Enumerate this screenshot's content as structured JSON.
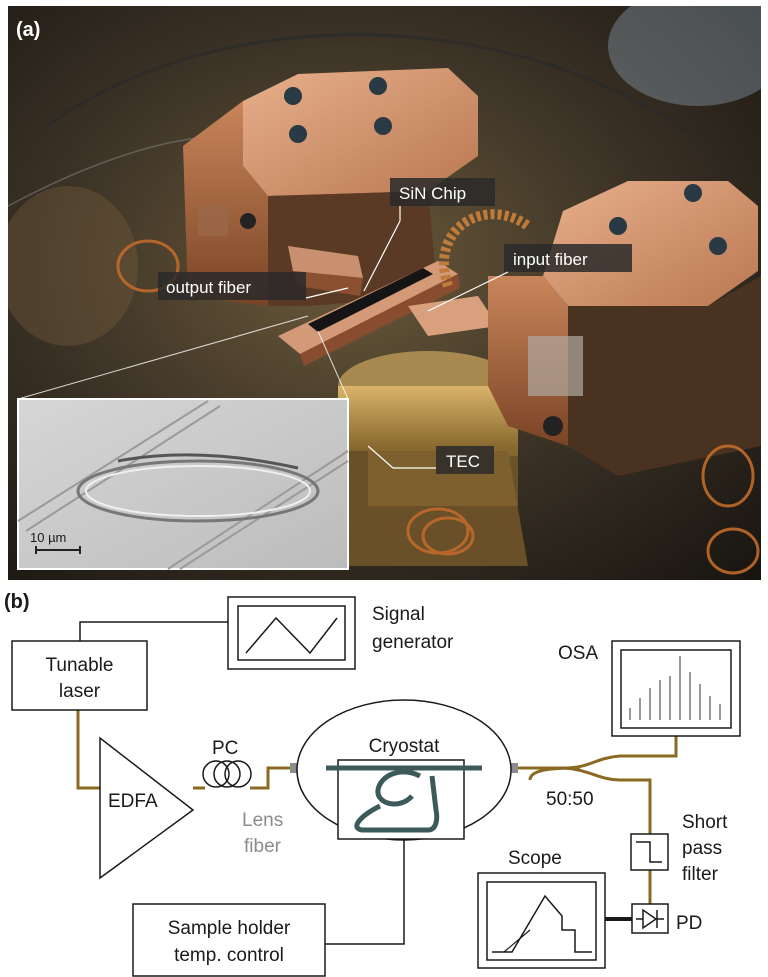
{
  "panel_a": {
    "label": "(a)",
    "callouts": {
      "sin_chip": "SiN Chip",
      "input_fiber": "input fiber",
      "output_fiber": "output fiber",
      "tec": "TEC"
    },
    "scale_bar": "10 µm"
  },
  "panel_b": {
    "label": "(b)",
    "blocks": {
      "tunable_laser": [
        "Tunable",
        "laser"
      ],
      "signal_generator": [
        "Signal",
        "generator"
      ],
      "edfa": "EDFA",
      "pc": "PC",
      "lens_fiber": [
        "Lens",
        "fiber"
      ],
      "cryostat": "Cryostat",
      "osa": "OSA",
      "splitter": "50:50",
      "short_pass_filter": [
        "Short",
        "pass",
        "filter"
      ],
      "scope": "Scope",
      "pd": "PD",
      "sample_holder": [
        "Sample holder",
        "temp. control"
      ]
    }
  },
  "colors": {
    "fiber": "#8a6a22",
    "waveguide": "#3d5a5a",
    "lens_fiber_gray": "#8c8c8c",
    "outline": "#1a1a1a"
  }
}
